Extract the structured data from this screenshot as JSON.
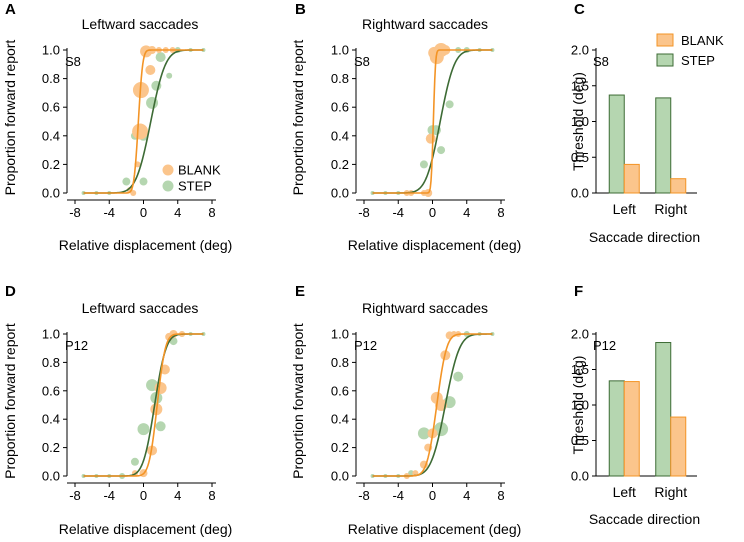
{
  "colors": {
    "blank_fill": "#fbc58c",
    "blank_line": "#f39426",
    "step_fill": "#b5d6b0",
    "step_line": "#3d6b35",
    "axis": "#000000"
  },
  "chart_data": [
    {
      "id": "A",
      "type": "scatter",
      "letter": "A",
      "title": "Leftward saccades",
      "subject": "S8",
      "xlabel": "Relative displacement (deg)",
      "ylabel": "Proportion forward report",
      "xlim": [
        -8,
        8
      ],
      "ylim": [
        0,
        1
      ],
      "xticks": [
        "-8",
        "-4",
        "0",
        "4",
        "8"
      ],
      "xtick_values": [
        -8,
        -4,
        0,
        4,
        8
      ],
      "yticks": [
        "0.0",
        "0.2",
        "0.4",
        "0.6",
        "0.8",
        "1.0"
      ],
      "ytick_values": [
        0,
        0.2,
        0.4,
        0.6,
        0.8,
        1.0
      ],
      "legend": [
        "BLANK",
        "STEP"
      ],
      "series": [
        {
          "name": "BLANK",
          "fit": {
            "mu": -0.6,
            "sigma": 0.4
          },
          "points": [
            [
              -1.6,
              0.02,
              3
            ],
            [
              -1.2,
              0.0,
              3
            ],
            [
              -0.7,
              0.2,
              3
            ],
            [
              -0.4,
              0.43,
              8
            ],
            [
              -0.3,
              0.72,
              8
            ],
            [
              0.3,
              0.99,
              6
            ],
            [
              0.8,
              0.86,
              5
            ],
            [
              1.0,
              1.0,
              4
            ],
            [
              1.8,
              1.0,
              3
            ],
            [
              2.6,
              1.0,
              3
            ],
            [
              3.4,
              1.0,
              3
            ]
          ]
        },
        {
          "name": "STEP",
          "fit": {
            "mu": 0.85,
            "sigma": 1.35
          },
          "points": [
            [
              -7,
              0.0,
              2
            ],
            [
              -5.5,
              0.0,
              2
            ],
            [
              -4,
              0.0,
              2
            ],
            [
              -2,
              0.08,
              4
            ],
            [
              -1,
              0.4,
              4
            ],
            [
              0,
              0.08,
              4
            ],
            [
              0,
              0.4,
              5
            ],
            [
              1,
              0.63,
              6
            ],
            [
              1.5,
              0.75,
              5
            ],
            [
              2,
              0.95,
              5
            ],
            [
              3,
              0.82,
              3
            ],
            [
              4,
              1.0,
              3
            ],
            [
              5.5,
              1.0,
              2
            ],
            [
              7,
              1.0,
              2
            ]
          ]
        }
      ]
    },
    {
      "id": "B",
      "type": "scatter",
      "letter": "B",
      "title": "Rightward saccades",
      "subject": "S8",
      "xlabel": "Relative displacement (deg)",
      "ylabel": "Proportion forward report",
      "xlim": [
        -8,
        8
      ],
      "ylim": [
        0,
        1
      ],
      "xticks": [
        "-8",
        "-4",
        "0",
        "4",
        "8"
      ],
      "xtick_values": [
        -8,
        -4,
        0,
        4,
        8
      ],
      "yticks": [
        "0.0",
        "0.2",
        "0.4",
        "0.6",
        "0.8",
        "1.0"
      ],
      "ytick_values": [
        0,
        0.2,
        0.4,
        0.6,
        0.8,
        1.0
      ],
      "legend": [],
      "series": [
        {
          "name": "BLANK",
          "fit": {
            "mu": 0.1,
            "sigma": 0.2
          },
          "points": [
            [
              -3,
              0.0,
              3
            ],
            [
              -2.5,
              0.0,
              3
            ],
            [
              -1,
              0.0,
              3
            ],
            [
              -0.5,
              0.0,
              4
            ],
            [
              -0.2,
              0.38,
              5
            ],
            [
              0.2,
              0.98,
              6
            ],
            [
              0.5,
              0.95,
              7
            ],
            [
              1,
              1.0,
              7
            ],
            [
              1.5,
              1.0,
              5
            ]
          ]
        },
        {
          "name": "STEP",
          "fit": {
            "mu": 0.9,
            "sigma": 1.3
          },
          "points": [
            [
              -7,
              0.0,
              2
            ],
            [
              -5.5,
              0.0,
              2
            ],
            [
              -4,
              0.0,
              2
            ],
            [
              -1,
              0.2,
              4
            ],
            [
              0,
              0.44,
              5
            ],
            [
              0.4,
              0.44,
              5
            ],
            [
              1,
              0.3,
              4
            ],
            [
              2,
              0.62,
              4
            ],
            [
              3,
              1.0,
              3
            ],
            [
              4,
              1.0,
              3
            ],
            [
              5.5,
              1.0,
              2
            ],
            [
              7,
              1.0,
              2
            ]
          ]
        }
      ]
    },
    {
      "id": "C",
      "type": "bar",
      "letter": "C",
      "subject": "S8",
      "xlabel": "Saccade direction",
      "ylabel": "Threshold (deg)",
      "ylim": [
        0,
        2
      ],
      "yticks": [
        "0.0",
        "0.5",
        "1.0",
        "1.5",
        "2.0"
      ],
      "ytick_values": [
        0,
        0.5,
        1.0,
        1.5,
        2.0
      ],
      "categories": [
        "Left",
        "Right"
      ],
      "legend": [
        "BLANK",
        "STEP"
      ],
      "series": [
        {
          "name": "STEP",
          "values": [
            1.37,
            1.33
          ]
        },
        {
          "name": "BLANK",
          "values": [
            0.4,
            0.2
          ]
        }
      ]
    },
    {
      "id": "D",
      "type": "scatter",
      "letter": "D",
      "title": "Leftward saccades",
      "subject": "P12",
      "xlabel": "Relative displacement (deg)",
      "ylabel": "Proportion forward report",
      "xlim": [
        -8,
        8
      ],
      "ylim": [
        0,
        1
      ],
      "xticks": [
        "-8",
        "-4",
        "0",
        "4",
        "8"
      ],
      "xtick_values": [
        -8,
        -4,
        0,
        4,
        8
      ],
      "yticks": [
        "0.0",
        "0.2",
        "0.4",
        "0.6",
        "0.8",
        "1.0"
      ],
      "ytick_values": [
        0,
        0.2,
        0.4,
        0.6,
        0.8,
        1.0
      ],
      "legend": [],
      "series": [
        {
          "name": "BLANK",
          "fit": {
            "mu": 1.6,
            "sigma": 0.75
          },
          "points": [
            [
              -1,
              0.02,
              3
            ],
            [
              0,
              0.02,
              4
            ],
            [
              1,
              0.18,
              5
            ],
            [
              1.5,
              0.47,
              6
            ],
            [
              2,
              0.62,
              6
            ],
            [
              2.5,
              0.75,
              5
            ],
            [
              3,
              0.98,
              4
            ],
            [
              3.5,
              1.0,
              4
            ],
            [
              4.5,
              1.0,
              3
            ]
          ]
        },
        {
          "name": "STEP",
          "fit": {
            "mu": 1.3,
            "sigma": 1.05
          },
          "points": [
            [
              -7,
              0.0,
              2
            ],
            [
              -5.5,
              0.0,
              2
            ],
            [
              -4,
              0.0,
              2
            ],
            [
              -2.5,
              0.0,
              3
            ],
            [
              -1,
              0.1,
              4
            ],
            [
              0,
              0.33,
              6
            ],
            [
              1,
              0.64,
              6
            ],
            [
              1.5,
              0.55,
              6
            ],
            [
              2,
              0.35,
              5
            ],
            [
              3.5,
              0.95,
              4
            ],
            [
              4.5,
              1.0,
              3
            ],
            [
              5.5,
              1.0,
              2
            ],
            [
              7,
              1.0,
              2
            ]
          ]
        }
      ]
    },
    {
      "id": "E",
      "type": "scatter",
      "letter": "E",
      "title": "Rightward saccades",
      "subject": "P12",
      "xlabel": "Relative displacement (deg)",
      "ylabel": "Proportion forward report",
      "xlim": [
        -8,
        8
      ],
      "ylim": [
        0,
        1
      ],
      "xticks": [
        "-8",
        "-4",
        "0",
        "4",
        "8"
      ],
      "xtick_values": [
        -8,
        -4,
        0,
        4,
        8
      ],
      "yticks": [
        "0.0",
        "0.2",
        "0.4",
        "0.6",
        "0.8",
        "1.0"
      ],
      "ytick_values": [
        0,
        0.2,
        0.4,
        0.6,
        0.8,
        1.0
      ],
      "legend": [],
      "series": [
        {
          "name": "BLANK",
          "fit": {
            "mu": 0.5,
            "sigma": 0.9
          },
          "points": [
            [
              -3,
              0.0,
              3
            ],
            [
              -2,
              0.02,
              3
            ],
            [
              -1,
              0.08,
              4
            ],
            [
              -0.5,
              0.2,
              4
            ],
            [
              0,
              0.3,
              5
            ],
            [
              0.5,
              0.55,
              6
            ],
            [
              1,
              0.5,
              6
            ],
            [
              1.5,
              0.85,
              5
            ],
            [
              2,
              0.99,
              4
            ],
            [
              2.5,
              1.0,
              3
            ],
            [
              3,
              1.0,
              3
            ]
          ]
        },
        {
          "name": "STEP",
          "fit": {
            "mu": 1.5,
            "sigma": 1.3
          },
          "points": [
            [
              -7,
              0.0,
              2
            ],
            [
              -5.5,
              0.0,
              2
            ],
            [
              -4,
              0.0,
              2
            ],
            [
              -2.5,
              0.02,
              3
            ],
            [
              -1,
              0.3,
              6
            ],
            [
              1,
              0.33,
              7
            ],
            [
              2,
              0.52,
              6
            ],
            [
              3,
              0.7,
              5
            ],
            [
              4,
              1.0,
              3
            ],
            [
              5.5,
              1.0,
              2
            ],
            [
              7,
              1.0,
              2
            ]
          ]
        }
      ]
    },
    {
      "id": "F",
      "type": "bar",
      "letter": "F",
      "subject": "P12",
      "xlabel": "Saccade direction",
      "ylabel": "Threshold (deg)",
      "ylim": [
        0,
        2
      ],
      "yticks": [
        "0.0",
        "0.5",
        "1.0",
        "1.5",
        "2.0"
      ],
      "ytick_values": [
        0,
        0.5,
        1.0,
        1.5,
        2.0
      ],
      "categories": [
        "Left",
        "Right"
      ],
      "legend": [],
      "series": [
        {
          "name": "STEP",
          "values": [
            1.34,
            1.88
          ]
        },
        {
          "name": "BLANK",
          "values": [
            1.33,
            0.83
          ]
        }
      ]
    }
  ]
}
